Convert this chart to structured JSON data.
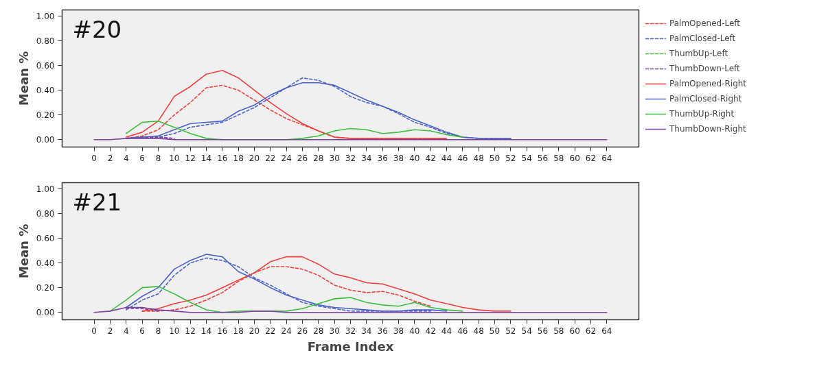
{
  "chart_data": [
    {
      "type": "line",
      "title": "#20",
      "ylabel": "Mean %",
      "legend": "right",
      "xlim": [
        -4,
        68
      ],
      "ylim": [
        -0.06,
        1.05
      ],
      "xticks": [
        0,
        2,
        4,
        6,
        8,
        10,
        12,
        14,
        16,
        18,
        20,
        22,
        24,
        26,
        28,
        30,
        32,
        34,
        36,
        38,
        40,
        42,
        44,
        46,
        48,
        50,
        52,
        54,
        56,
        58,
        60,
        62,
        64
      ],
      "yticks": [
        {
          "value": 0,
          "label": "0.00"
        },
        {
          "value": 0.2,
          "label": "0.20"
        },
        {
          "value": 0.4,
          "label": "0.40"
        },
        {
          "value": 0.6,
          "label": "0.60"
        },
        {
          "value": 0.8,
          "label": "0.80"
        },
        {
          "value": 1,
          "label": "1.00"
        }
      ],
      "x": [
        0,
        2,
        4,
        6,
        8,
        10,
        12,
        14,
        16,
        18,
        20,
        22,
        24,
        26,
        28,
        30,
        32,
        34,
        36,
        38,
        40,
        42,
        44,
        46,
        48,
        50,
        52,
        54,
        56,
        58,
        60,
        62,
        64
      ],
      "series": [
        {
          "name": "PalmOpened-Left",
          "color": "#f0403c",
          "line_style": "dashed",
          "values": [
            null,
            null,
            0.01,
            0.03,
            0.08,
            0.2,
            0.3,
            0.42,
            0.44,
            0.4,
            0.32,
            0.24,
            0.17,
            0.12,
            0.07,
            0.02,
            0.01,
            0.01,
            0.01,
            0.01,
            0.01,
            0.01,
            0.01,
            null,
            null,
            null,
            null,
            null,
            null,
            null,
            null,
            null,
            null
          ]
        },
        {
          "name": "PalmClosed-Left",
          "color": "#4a63c4",
          "line_style": "dashed",
          "values": [
            null,
            null,
            0.01,
            0.02,
            0.02,
            0.05,
            0.1,
            0.12,
            0.14,
            0.2,
            0.26,
            0.34,
            0.42,
            0.5,
            0.48,
            0.43,
            0.35,
            0.3,
            0.27,
            0.21,
            0.14,
            0.1,
            0.05,
            0.02,
            0.01,
            0.01,
            0.01,
            null,
            null,
            null,
            null,
            null,
            null
          ]
        },
        {
          "name": "ThumbUp-Left",
          "color": "#3cbf3c",
          "line_style": "dashed",
          "values": [
            null,
            null,
            null,
            null,
            null,
            null,
            null,
            null,
            null,
            null,
            null,
            null,
            null,
            null,
            null,
            null,
            null,
            null,
            null,
            null,
            null,
            null,
            null,
            null,
            null,
            null,
            null,
            null,
            null,
            null,
            null,
            null,
            null
          ]
        },
        {
          "name": "ThumbDown-Left",
          "color": "#7b3f9e",
          "line_style": "dashed",
          "values": [
            null,
            null,
            0.01,
            0.02,
            0.02,
            0.01,
            null,
            null,
            null,
            null,
            null,
            null,
            null,
            null,
            null,
            null,
            null,
            null,
            null,
            null,
            null,
            null,
            null,
            null,
            null,
            null,
            null,
            null,
            null,
            null,
            null,
            null,
            null
          ]
        },
        {
          "name": "PalmOpened-Right",
          "color": "#f0403c",
          "line_style": "solid",
          "values": [
            null,
            null,
            0.02,
            0.06,
            0.15,
            0.35,
            0.43,
            0.53,
            0.56,
            0.5,
            0.4,
            0.3,
            0.21,
            0.13,
            0.07,
            0.02,
            0.01,
            0.01,
            0.01,
            0.01,
            0.01,
            0.01,
            0.01,
            null,
            null,
            null,
            null,
            null,
            null,
            null,
            null,
            null,
            null
          ]
        },
        {
          "name": "PalmClosed-Right",
          "color": "#4a63c4",
          "line_style": "solid",
          "values": [
            null,
            null,
            0.01,
            0.02,
            0.03,
            0.08,
            0.13,
            0.14,
            0.15,
            0.23,
            0.28,
            0.36,
            0.42,
            0.46,
            0.46,
            0.44,
            0.38,
            0.32,
            0.27,
            0.22,
            0.16,
            0.11,
            0.06,
            0.02,
            0.01,
            0.01,
            0.01,
            null,
            null,
            null,
            null,
            null,
            null
          ]
        },
        {
          "name": "ThumbUp-Right",
          "color": "#3cbf3c",
          "line_style": "solid",
          "values": [
            null,
            null,
            0.05,
            0.14,
            0.15,
            0.1,
            0.05,
            0.01,
            0,
            0,
            0,
            0,
            0,
            0.01,
            0.03,
            0.07,
            0.09,
            0.08,
            0.05,
            0.06,
            0.08,
            0.07,
            0.04,
            0.02,
            null,
            null,
            null,
            null,
            null,
            null,
            null,
            null,
            null
          ]
        },
        {
          "name": "ThumbDown-Right",
          "color": "#7b3f9e",
          "line_style": "solid",
          "values": [
            0,
            0,
            0.01,
            0.01,
            0.01,
            0,
            0,
            0,
            0,
            0,
            0,
            0,
            0,
            0,
            0,
            0,
            0,
            0,
            0,
            0,
            0,
            0,
            0,
            0,
            0,
            0,
            0,
            0,
            0,
            0,
            0,
            0,
            0
          ]
        }
      ]
    },
    {
      "type": "line",
      "title": "#21",
      "ylabel": "Mean %",
      "xlabel": "Frame Index",
      "xlim": [
        -4,
        68
      ],
      "ylim": [
        -0.06,
        1.05
      ],
      "xticks": [
        0,
        2,
        4,
        6,
        8,
        10,
        12,
        14,
        16,
        18,
        20,
        22,
        24,
        26,
        28,
        30,
        32,
        34,
        36,
        38,
        40,
        42,
        44,
        46,
        48,
        50,
        52,
        54,
        56,
        58,
        60,
        62,
        64
      ],
      "yticks": [
        {
          "value": 0,
          "label": "0.00"
        },
        {
          "value": 0.2,
          "label": "0.20"
        },
        {
          "value": 0.4,
          "label": "0.40"
        },
        {
          "value": 0.6,
          "label": "0.60"
        },
        {
          "value": 0.8,
          "label": "0.80"
        },
        {
          "value": 1,
          "label": "1.00"
        }
      ],
      "x": [
        0,
        2,
        4,
        6,
        8,
        10,
        12,
        14,
        16,
        18,
        20,
        22,
        24,
        26,
        28,
        30,
        32,
        34,
        36,
        38,
        40,
        42,
        44,
        46,
        48,
        50,
        52,
        54,
        56,
        58,
        60,
        62,
        64
      ],
      "series": [
        {
          "color": "#f0403c",
          "line_style": "dashed",
          "values": [
            null,
            null,
            null,
            0.01,
            0.01,
            0.02,
            0.05,
            0.1,
            0.16,
            0.25,
            0.32,
            0.37,
            0.37,
            0.35,
            0.3,
            0.22,
            0.18,
            0.16,
            0.17,
            0.14,
            0.09,
            0.05,
            null,
            null,
            null,
            null,
            null,
            null,
            null,
            null,
            null,
            null,
            null
          ]
        },
        {
          "color": "#4a63c4",
          "line_style": "dashed",
          "values": [
            null,
            null,
            0.02,
            0.1,
            0.15,
            0.3,
            0.4,
            0.44,
            0.42,
            0.37,
            0.28,
            0.22,
            0.15,
            0.08,
            0.05,
            0.03,
            0.01,
            0.01,
            0.01,
            0.01,
            0.01,
            0.01,
            null,
            null,
            null,
            null,
            null,
            null,
            null,
            null,
            null,
            null,
            null
          ]
        },
        {
          "color": "#3cbf3c",
          "line_style": "dashed",
          "values": [
            null,
            null,
            null,
            null,
            null,
            null,
            null,
            null,
            null,
            null,
            null,
            null,
            null,
            null,
            null,
            null,
            null,
            null,
            null,
            null,
            null,
            null,
            null,
            null,
            null,
            null,
            null,
            null,
            null,
            null,
            null,
            null,
            null
          ]
        },
        {
          "color": "#7b3f9e",
          "line_style": "dashed",
          "values": [
            null,
            null,
            0.03,
            0.03,
            0.01,
            null,
            null,
            null,
            null,
            null,
            null,
            null,
            null,
            null,
            null,
            null,
            null,
            null,
            null,
            null,
            null,
            null,
            null,
            null,
            null,
            null,
            null,
            null,
            null,
            null,
            null,
            null,
            null
          ]
        },
        {
          "color": "#f0403c",
          "line_style": "solid",
          "values": [
            null,
            null,
            null,
            0.01,
            0.03,
            0.07,
            0.1,
            0.14,
            0.2,
            0.26,
            0.32,
            0.41,
            0.45,
            0.45,
            0.39,
            0.31,
            0.28,
            0.24,
            0.23,
            0.19,
            0.15,
            0.1,
            0.07,
            0.04,
            0.02,
            0.01,
            0.01,
            null,
            null,
            null,
            null,
            null,
            null
          ]
        },
        {
          "color": "#4a63c4",
          "line_style": "solid",
          "values": [
            null,
            null,
            0.04,
            0.13,
            0.2,
            0.35,
            0.42,
            0.47,
            0.45,
            0.33,
            0.27,
            0.2,
            0.14,
            0.1,
            0.06,
            0.04,
            0.03,
            0.02,
            0.01,
            0.01,
            0.02,
            0.02,
            0.01,
            null,
            null,
            null,
            null,
            null,
            null,
            null,
            null,
            null,
            null
          ]
        },
        {
          "color": "#3cbf3c",
          "line_style": "solid",
          "values": [
            null,
            0.01,
            0.1,
            0.2,
            0.21,
            0.15,
            0.08,
            0.02,
            0,
            0.01,
            0.01,
            0.01,
            0.01,
            0.03,
            0.07,
            0.11,
            0.12,
            0.08,
            0.06,
            0.05,
            0.08,
            0.04,
            0.02,
            0.01,
            null,
            null,
            null,
            null,
            null,
            null,
            null,
            null,
            null
          ]
        },
        {
          "color": "#7b3f9e",
          "line_style": "solid",
          "values": [
            0,
            0.01,
            0.04,
            0.04,
            0.02,
            0.01,
            0,
            0,
            0,
            0,
            0.01,
            0.01,
            0,
            0,
            0,
            0,
            0,
            0,
            0,
            0,
            0,
            0,
            0,
            0,
            0,
            0,
            0,
            0,
            0,
            0,
            0,
            0,
            0
          ]
        }
      ]
    }
  ]
}
